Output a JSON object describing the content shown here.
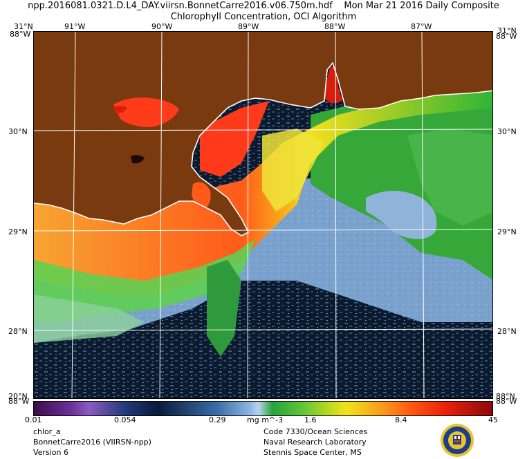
{
  "header": {
    "title_line1": "npp.2016081.0321.D.L4_DAY.viirsn.BonnetCarre2016.v06.750m.hdf    Mon Mar 21 2016 Daily Composite",
    "title_line2": "Chlorophyll Concentration, OCI Algorithm"
  },
  "map": {
    "top_lon_labels": [
      "91°W",
      "90°W",
      "89°W",
      "88°W",
      "87°W"
    ],
    "corner_top_left_lat": "31°N",
    "corner_top_left_lon": "88°W",
    "corner_top_right_lat": "31°N",
    "corner_top_right_lon": "88°W",
    "corner_bottom_left_lat": "20°N",
    "corner_bottom_left_lon": "88°W",
    "corner_bottom_right_lat": "88°N",
    "corner_bottom_right_lon": "88°W",
    "lat_labels": [
      "30°N",
      "29°N",
      "28°N"
    ],
    "colors": {
      "land": "#7a3a0f",
      "grid": "#ffffff",
      "deep_water": "#0d1d33"
    }
  },
  "colorbar": {
    "tick_labels": [
      "0.01",
      "0.054",
      "0.29",
      "1.6",
      "8.4",
      "45"
    ],
    "units": "mg m^-3",
    "scale": "log",
    "range": [
      0.01,
      45
    ]
  },
  "footer": {
    "left": [
      "chlor_a",
      "BonnetCarre2016 (VIIRSN-npp)",
      "Version 6"
    ],
    "right": [
      "Code 7330/Ocean Sciences",
      "Naval Research Laboratory",
      "Stennis Space Center, MS"
    ]
  }
}
